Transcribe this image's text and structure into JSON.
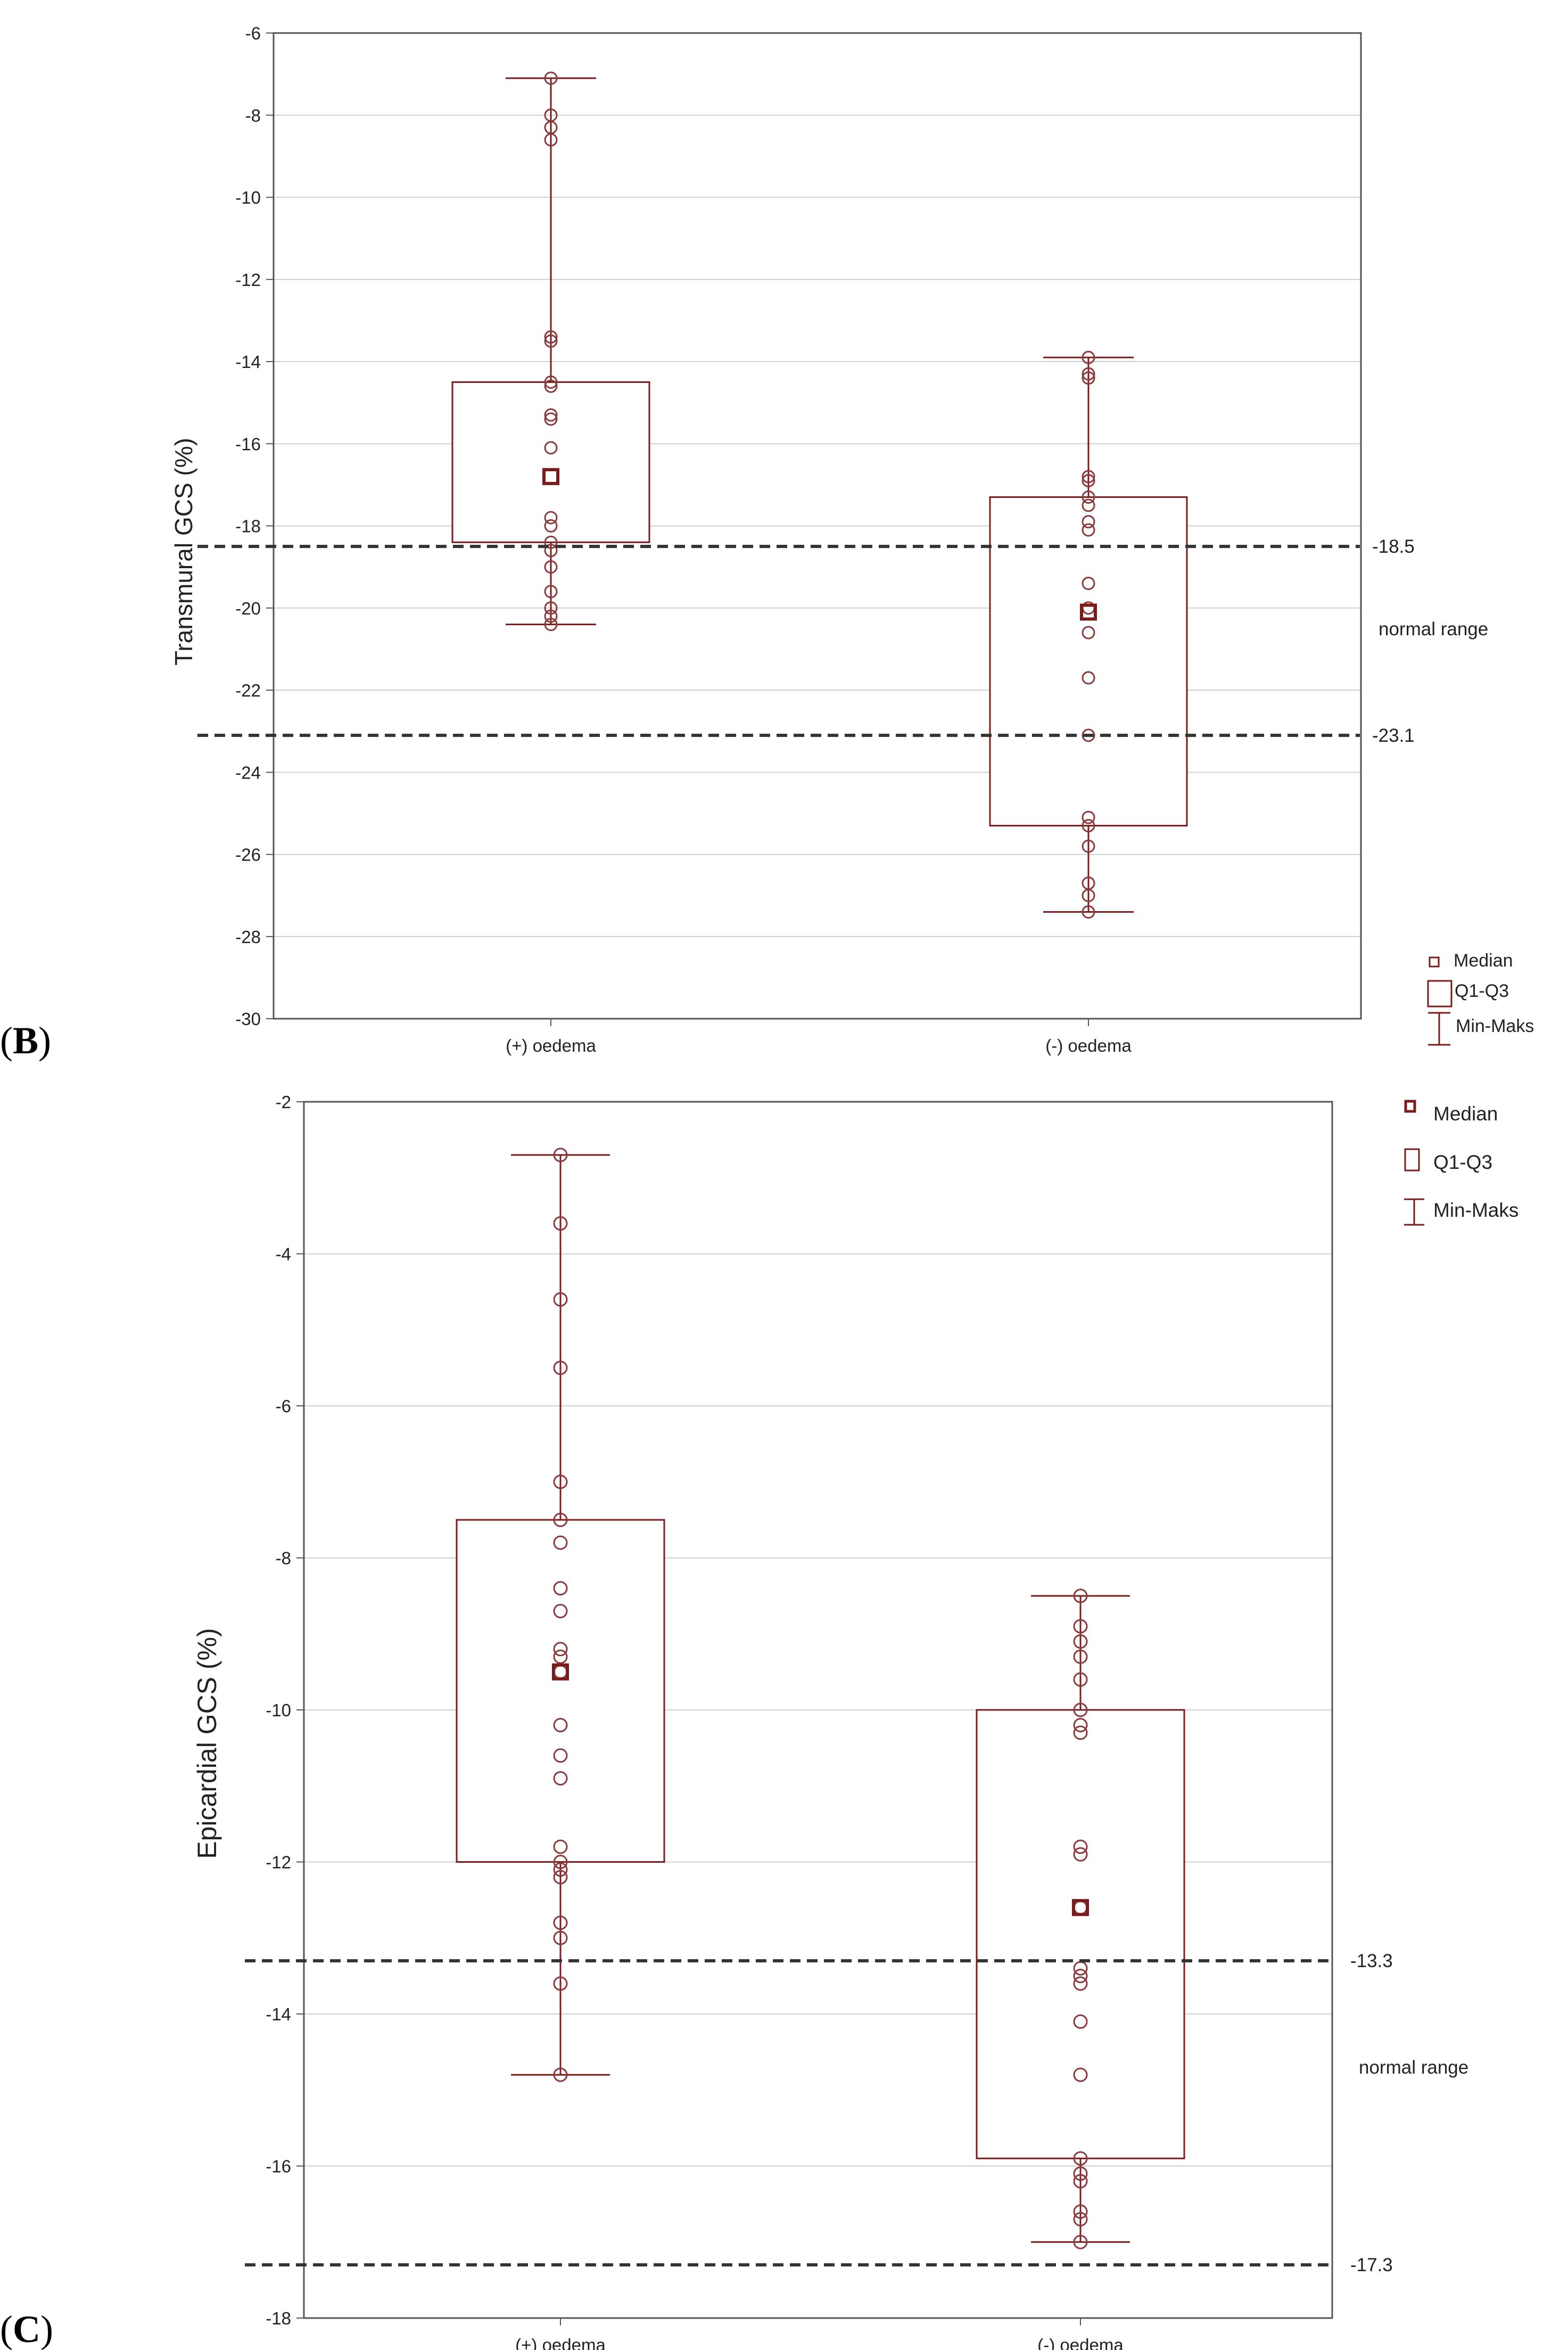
{
  "colors": {
    "box": "#7b1c1c",
    "point": "#8a3a3a",
    "grid": "#d0d0d0",
    "frame": "#555555",
    "dash": "#333333"
  },
  "legend": {
    "median": "Median",
    "iqr": "Q1-Q3",
    "range": "Min-Maks"
  },
  "chart_data": [
    {
      "panel": "B",
      "type": "box",
      "ylabel": "Transmural GCS (%)",
      "xlabel": "",
      "ylim": [
        -30,
        -6
      ],
      "yticks": [
        -6,
        -8,
        -10,
        -12,
        -14,
        -16,
        -18,
        -20,
        -22,
        -24,
        -26,
        -28,
        -30
      ],
      "grid": true,
      "categories": [
        "(+) oedema",
        "(-) oedema"
      ],
      "boxes": [
        {
          "name": "(+) oedema",
          "min": -20.4,
          "q1": -18.4,
          "median": -16.8,
          "q3": -14.5,
          "max": -7.1,
          "points": [
            -7.1,
            -8.0,
            -8.3,
            -8.6,
            -13.4,
            -13.5,
            -14.5,
            -14.6,
            -15.3,
            -15.4,
            -16.1,
            -17.8,
            -18.0,
            -18.4,
            -18.6,
            -19.0,
            -19.6,
            -20.0,
            -20.2,
            -20.4
          ]
        },
        {
          "name": "(-) oedema",
          "min": -27.4,
          "q1": -25.3,
          "median": -20.1,
          "q3": -17.3,
          "max": -13.9,
          "points": [
            -13.9,
            -14.3,
            -14.4,
            -16.8,
            -16.9,
            -17.3,
            -17.5,
            -17.9,
            -18.1,
            -19.4,
            -20.0,
            -20.6,
            -21.7,
            -23.1,
            -25.1,
            -25.3,
            -25.8,
            -26.7,
            -27.0,
            -27.4
          ]
        }
      ],
      "reference_lines": [
        {
          "value": -18.5,
          "label": "-18.5"
        },
        {
          "value": -23.1,
          "label": "-23.1"
        }
      ],
      "range_label": "normal range"
    },
    {
      "panel": "C",
      "type": "box",
      "ylabel": "Epicardial GCS (%)",
      "xlabel": "",
      "ylim": [
        -18,
        -2
      ],
      "yticks": [
        -2,
        -4,
        -6,
        -8,
        -10,
        -12,
        -14,
        -16,
        -18
      ],
      "grid": true,
      "categories": [
        "(+) oedema",
        "(-) oedema"
      ],
      "boxes": [
        {
          "name": "(+) oedema",
          "min": -14.8,
          "q1": -12.0,
          "median": -9.5,
          "q3": -7.5,
          "max": -2.7,
          "points": [
            -2.7,
            -3.6,
            -4.6,
            -5.5,
            -7.0,
            -7.5,
            -7.8,
            -8.4,
            -8.7,
            -9.2,
            -9.3,
            -9.5,
            -10.2,
            -10.6,
            -10.9,
            -11.8,
            -12.0,
            -12.1,
            -12.2,
            -12.8,
            -13.0,
            -13.6,
            -14.8
          ]
        },
        {
          "name": "(-) oedema",
          "min": -17.0,
          "q1": -15.9,
          "median": -12.6,
          "q3": -10.0,
          "max": -8.5,
          "points": [
            -8.5,
            -8.9,
            -9.1,
            -9.3,
            -9.6,
            -10.0,
            -10.2,
            -10.3,
            -11.8,
            -11.9,
            -12.6,
            -13.4,
            -13.5,
            -13.6,
            -14.1,
            -14.8,
            -15.9,
            -16.1,
            -16.2,
            -16.6,
            -16.7,
            -17.0
          ]
        }
      ],
      "reference_lines": [
        {
          "value": -13.3,
          "label": "-13.3"
        },
        {
          "value": -17.3,
          "label": "-17.3"
        }
      ],
      "range_label": "normal range"
    }
  ]
}
